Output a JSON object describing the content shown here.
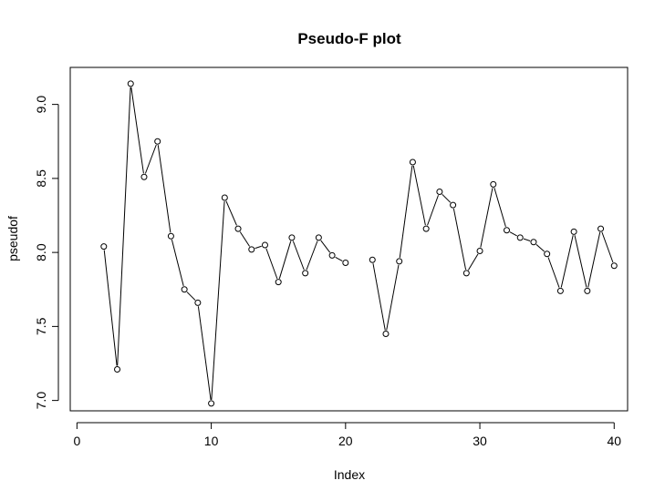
{
  "chart_data": {
    "type": "line",
    "title": "Pseudo-F plot",
    "xlabel": "Index",
    "ylabel": "pseudof",
    "xlim": [
      -0.5,
      41
    ],
    "ylim": [
      6.93,
      9.25
    ],
    "x_ticks": [
      0,
      10,
      20,
      30,
      40
    ],
    "x_tick_labels": [
      "0",
      "10",
      "20",
      "30",
      "40"
    ],
    "y_ticks": [
      7.0,
      7.5,
      8.0,
      8.5,
      9.0
    ],
    "y_tick_labels": [
      "7.0",
      "7.5",
      "8.0",
      "8.5",
      "9.0"
    ],
    "grid": false,
    "legend": "none",
    "marker": "open-circle",
    "line_color": "#000000",
    "series": [
      {
        "x": [
          2,
          3,
          4,
          5,
          6,
          7,
          8,
          9,
          10,
          11,
          12,
          13,
          14,
          15,
          16,
          17,
          18,
          19,
          20,
          21,
          22,
          23,
          24,
          25,
          26,
          27,
          28,
          29,
          30,
          31,
          32,
          33,
          34,
          35,
          36,
          37,
          38,
          39,
          40
        ],
        "values": [
          8.04,
          7.21,
          9.14,
          8.51,
          8.75,
          8.11,
          7.75,
          7.66,
          6.98,
          8.37,
          8.16,
          8.02,
          8.05,
          7.8,
          8.1,
          7.86,
          8.1,
          7.98,
          7.93,
          null,
          7.95,
          7.45,
          7.94,
          8.61,
          8.16,
          8.41,
          8.32,
          7.86,
          8.01,
          8.46,
          8.15,
          8.1,
          8.07,
          7.99,
          7.74,
          8.14,
          7.74,
          8.16,
          7.91
        ]
      }
    ]
  }
}
